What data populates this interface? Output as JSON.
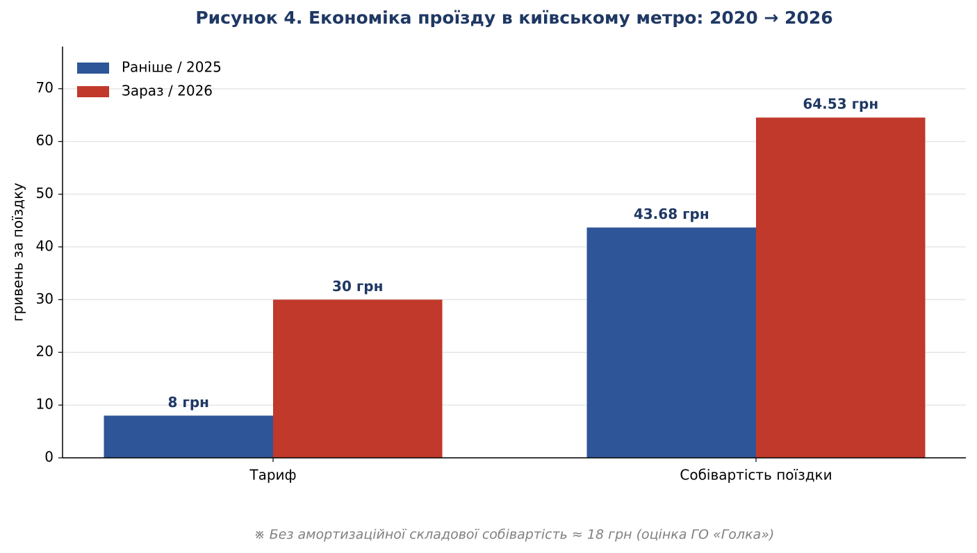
{
  "chart_data": {
    "type": "bar",
    "title": "Рисунок 4. Економіка проїзду в київському метро: 2020 → 2026",
    "y_label": "гривень за поїздку",
    "categories": [
      "Тариф",
      "Собівартість поїздки"
    ],
    "series": [
      {
        "name": "Раніше / 2025",
        "color": "#2e5597",
        "values": [
          8,
          43.68
        ],
        "value_labels": [
          "8 грн",
          "43.68 грн"
        ]
      },
      {
        "name": "Зараз / 2026",
        "color": "#c0392b",
        "values": [
          30,
          64.53
        ],
        "value_labels": [
          "30 грн",
          "64.53 грн"
        ]
      }
    ],
    "ylim": [
      0,
      78
    ],
    "yticks": [
      0,
      10,
      20,
      30,
      40,
      50,
      60,
      70
    ],
    "grid": true,
    "legend": "upper left",
    "footnote": "※ Без амортизаційної складової собівартість ≈ 18 грн (оцінка ГО «Голка»)"
  }
}
